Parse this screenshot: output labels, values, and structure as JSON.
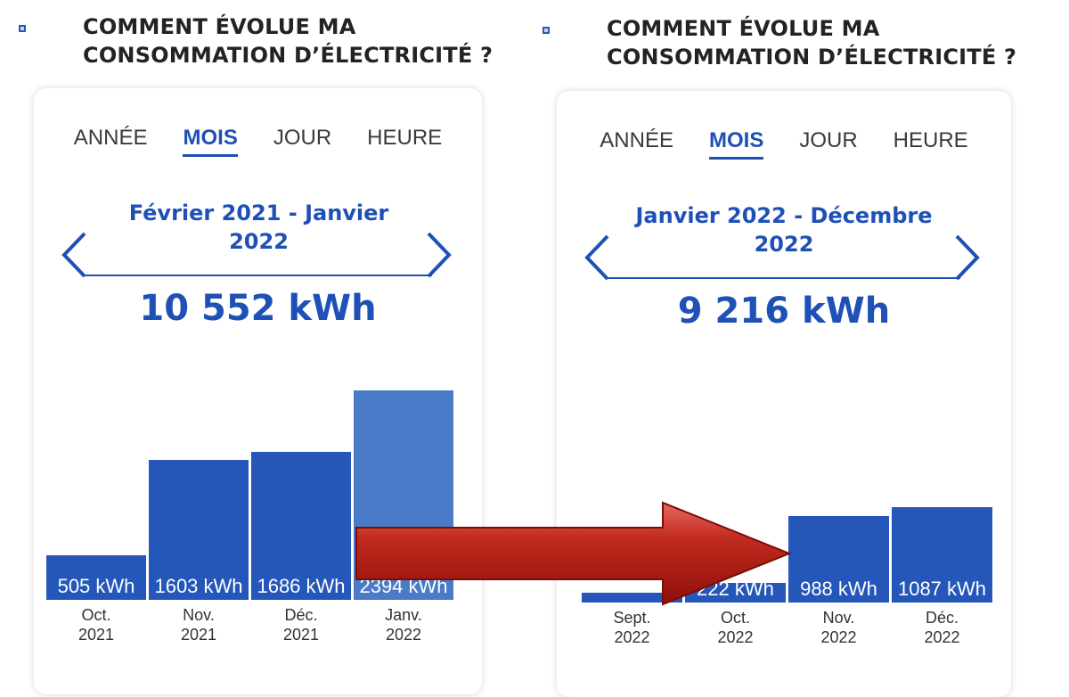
{
  "panels": [
    {
      "heading_line1": "COMMENT ÉVOLUE MA",
      "heading_line2": "CONSOMMATION D’ÉLECTRICITÉ ?",
      "tabs": [
        "ANNÉE",
        "MOIS",
        "JOUR",
        "HEURE"
      ],
      "active_tab": "MOIS",
      "period_line1": "Février 2021 - Janvier",
      "period_line2": "2022",
      "total": "10 552 kWh",
      "bars": [
        {
          "month": "Oct.",
          "year": "2021",
          "label": "505 kWh",
          "value": 505
        },
        {
          "month": "Nov.",
          "year": "2021",
          "label": "1603 kWh",
          "value": 1603
        },
        {
          "month": "Déc.",
          "year": "2021",
          "label": "1686 kWh",
          "value": 1686
        },
        {
          "month": "Janv.",
          "year": "2022",
          "label": "2394 kWh",
          "value": 2394
        }
      ]
    },
    {
      "heading_line1": "COMMENT ÉVOLUE MA",
      "heading_line2": "CONSOMMATION D’ÉLECTRICITÉ ?",
      "tabs": [
        "ANNÉE",
        "MOIS",
        "JOUR",
        "HEURE"
      ],
      "active_tab": "MOIS",
      "period_line1": "Janvier 2022 - Décembre",
      "period_line2": "2022",
      "total": "9 216 kWh",
      "bars": [
        {
          "month": "Sept.",
          "year": "2022",
          "label": "",
          "value": 108
        },
        {
          "month": "Oct.",
          "year": "2022",
          "label": "222 kWh",
          "value": 222
        },
        {
          "month": "Nov.",
          "year": "2022",
          "label": "988 kWh",
          "value": 988
        },
        {
          "month": "Déc.",
          "year": "2022",
          "label": "1087 kWh",
          "value": 1087
        }
      ]
    }
  ],
  "colors": {
    "brand_blue": "#1e50b6",
    "bar_blue": "#2457b9",
    "bar_current": "#4a7bc8",
    "arrow_red": "#b3140e"
  }
}
